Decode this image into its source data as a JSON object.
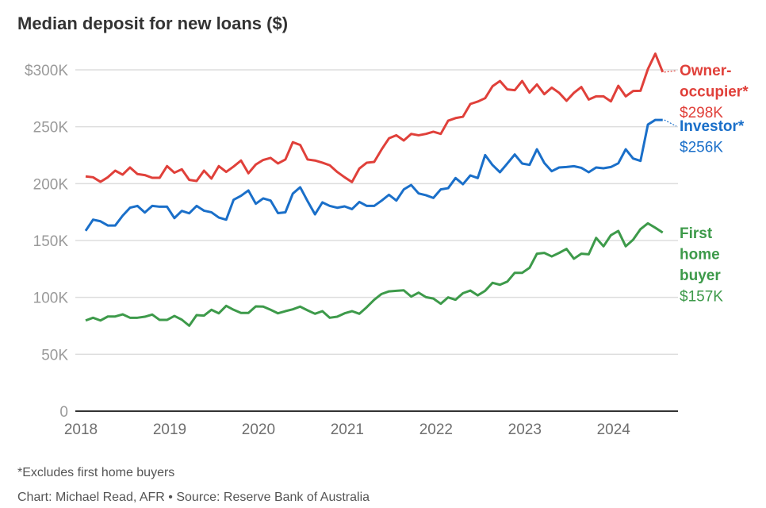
{
  "chart_data": {
    "type": "line",
    "title": "Median deposit for new loans ($)",
    "xlabel": "",
    "ylabel": "",
    "ylim": [
      0,
      300000
    ],
    "y_ticks": [
      {
        "value": 0,
        "label": "0"
      },
      {
        "value": 50000,
        "label": "50K"
      },
      {
        "value": 100000,
        "label": "100K"
      },
      {
        "value": 150000,
        "label": "150K"
      },
      {
        "value": 200000,
        "label": "200K"
      },
      {
        "value": 250000,
        "label": "250K"
      },
      {
        "value": 300000,
        "label": "$300K"
      }
    ],
    "x_ticks": [
      "2018",
      "2019",
      "2020",
      "2021",
      "2022",
      "2023",
      "2024"
    ],
    "grid": "horizontal",
    "legend": "direct labels at line ends (right)",
    "x": [
      "2018-01",
      "2018-02",
      "2018-03",
      "2018-04",
      "2018-05",
      "2018-06",
      "2018-07",
      "2018-08",
      "2018-09",
      "2018-10",
      "2018-11",
      "2018-12",
      "2019-01",
      "2019-02",
      "2019-03",
      "2019-04",
      "2019-05",
      "2019-06",
      "2019-07",
      "2019-08",
      "2019-09",
      "2019-10",
      "2019-11",
      "2019-12",
      "2020-01",
      "2020-02",
      "2020-03",
      "2020-04",
      "2020-05",
      "2020-06",
      "2020-07",
      "2020-08",
      "2020-09",
      "2020-10",
      "2020-11",
      "2020-12",
      "2021-01",
      "2021-02",
      "2021-03",
      "2021-04",
      "2021-05",
      "2021-06",
      "2021-07",
      "2021-08",
      "2021-09",
      "2021-10",
      "2021-11",
      "2021-12",
      "2022-01",
      "2022-02",
      "2022-03",
      "2022-04",
      "2022-05",
      "2022-06",
      "2022-07",
      "2022-08",
      "2022-09",
      "2022-10",
      "2022-11",
      "2022-12",
      "2023-01",
      "2023-02",
      "2023-03",
      "2023-04",
      "2023-05",
      "2023-06",
      "2023-07",
      "2023-08",
      "2023-09",
      "2023-10",
      "2023-11",
      "2023-12",
      "2024-01",
      "2024-02",
      "2024-03",
      "2024-04",
      "2024-05",
      "2024-06",
      "2024-07"
    ],
    "series": [
      {
        "name": "Owner-occupier*",
        "label_lines": [
          "Owner-",
          "occupier*"
        ],
        "end_label": "$298K",
        "color": "#e0403a",
        "values": [
          206300,
          205600,
          201600,
          205600,
          211400,
          207900,
          214200,
          208400,
          207500,
          205100,
          205100,
          215400,
          209600,
          212600,
          203300,
          202300,
          211400,
          204400,
          215400,
          210300,
          215000,
          220300,
          209100,
          216800,
          220800,
          222600,
          217700,
          221200,
          236400,
          234000,
          221200,
          220300,
          218400,
          216100,
          210300,
          205600,
          201400,
          213300,
          218400,
          219100,
          230000,
          239800,
          242500,
          237900,
          243700,
          242500,
          243700,
          245600,
          243700,
          255300,
          257600,
          258800,
          270000,
          272100,
          275100,
          285600,
          290200,
          282800,
          282100,
          290200,
          280000,
          287200,
          278600,
          284400,
          279800,
          272800,
          279800,
          284900,
          273900,
          276700,
          276700,
          272300,
          286000,
          276700,
          281400,
          281600,
          300700,
          314200,
          298000
        ]
      },
      {
        "name": "Investor*",
        "label_lines": [
          "Investor*"
        ],
        "end_label": "$256K",
        "color": "#1a6fc9",
        "values": [
          158500,
          168300,
          166900,
          163200,
          163200,
          171800,
          178800,
          180400,
          174600,
          180400,
          179700,
          179700,
          169700,
          176000,
          173900,
          180400,
          176200,
          174800,
          170200,
          168300,
          185800,
          189300,
          194000,
          182300,
          187000,
          185100,
          174100,
          174800,
          191200,
          196800,
          184600,
          173000,
          183500,
          180400,
          178800,
          180000,
          177600,
          183900,
          180400,
          180400,
          185000,
          190200,
          185100,
          194900,
          198800,
          191400,
          189800,
          187400,
          194900,
          196000,
          204900,
          199500,
          207200,
          204900,
          225100,
          216300,
          210000,
          217700,
          225600,
          217700,
          216500,
          230200,
          218100,
          210900,
          214200,
          214600,
          215300,
          213900,
          210000,
          214200,
          213500,
          214600,
          217900,
          230200,
          222100,
          220000,
          251900,
          256000,
          256000
        ]
      },
      {
        "name": "First home buyer",
        "label_lines": [
          "First",
          "home",
          "buyer"
        ],
        "end_label": "$157K",
        "color": "#3d9a4a",
        "values": [
          79700,
          82100,
          79700,
          83200,
          83200,
          85100,
          82100,
          82100,
          83000,
          84900,
          80200,
          80200,
          83700,
          80400,
          75100,
          84400,
          84000,
          89100,
          86000,
          92600,
          89100,
          86300,
          86300,
          92100,
          91900,
          89100,
          86000,
          87900,
          89500,
          91900,
          88600,
          85600,
          87900,
          82100,
          83000,
          86000,
          87900,
          85600,
          91400,
          97900,
          103000,
          105300,
          105800,
          106200,
          100700,
          104200,
          100200,
          99000,
          94400,
          100000,
          97900,
          103700,
          106000,
          101800,
          105800,
          112800,
          111100,
          113900,
          121600,
          121600,
          126000,
          138400,
          139100,
          136000,
          139100,
          142600,
          134000,
          138400,
          137900,
          152300,
          144900,
          154700,
          158400,
          144900,
          150700,
          160000,
          165100,
          161200,
          157000
        ]
      }
    ]
  },
  "footnote": "*Excludes first home buyers",
  "credit": "Chart: Michael Read, AFR • Source: Reserve Bank of Australia"
}
